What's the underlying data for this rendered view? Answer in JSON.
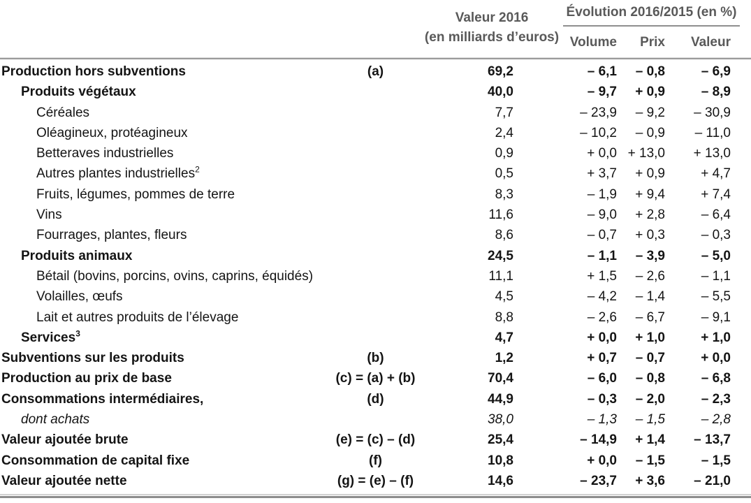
{
  "table": {
    "header": {
      "value_col_line1": "Valeur 2016",
      "value_col_line2": "(en milliards d’euros)",
      "evolution_title": "Évolution 2016/2015 (en %)",
      "sub_columns": [
        "Volume",
        "Prix",
        "Valeur"
      ]
    },
    "rows": [
      {
        "label": "Production hors subventions",
        "sup": "",
        "code": "(a)",
        "indent": 0,
        "style": "bold",
        "v2016": "69,2",
        "volume": "– 6,1",
        "prix": "– 0,8",
        "valeur": "– 6,9"
      },
      {
        "label": "Produits végétaux",
        "sup": "",
        "code": "",
        "indent": 1,
        "style": "bold",
        "v2016": "40,0",
        "volume": "– 9,7",
        "prix": "+ 0,9",
        "valeur": "– 8,9"
      },
      {
        "label": "Céréales",
        "sup": "",
        "code": "",
        "indent": 2,
        "style": "regular",
        "v2016": "7,7",
        "volume": "– 23,9",
        "prix": "– 9,2",
        "valeur": "– 30,9"
      },
      {
        "label": "Oléagineux, protéagineux",
        "sup": "",
        "code": "",
        "indent": 2,
        "style": "regular",
        "v2016": "2,4",
        "volume": "– 10,2",
        "prix": "– 0,9",
        "valeur": "– 11,0"
      },
      {
        "label": "Betteraves industrielles",
        "sup": "",
        "code": "",
        "indent": 2,
        "style": "regular",
        "v2016": "0,9",
        "volume": "+ 0,0",
        "prix": "+ 13,0",
        "valeur": "+ 13,0"
      },
      {
        "label": "Autres plantes industrielles",
        "sup": "2",
        "code": "",
        "indent": 2,
        "style": "regular",
        "v2016": "0,5",
        "volume": "+ 3,7",
        "prix": "+ 0,9",
        "valeur": "+ 4,7"
      },
      {
        "label": "Fruits, légumes, pommes de terre",
        "sup": "",
        "code": "",
        "indent": 2,
        "style": "regular",
        "v2016": "8,3",
        "volume": "– 1,9",
        "prix": "+ 9,4",
        "valeur": "+ 7,4"
      },
      {
        "label": "Vins",
        "sup": "",
        "code": "",
        "indent": 2,
        "style": "regular",
        "v2016": "11,6",
        "volume": "– 9,0",
        "prix": "+ 2,8",
        "valeur": "– 6,4"
      },
      {
        "label": "Fourrages, plantes, fleurs",
        "sup": "",
        "code": "",
        "indent": 2,
        "style": "regular",
        "v2016": "8,6",
        "volume": "– 0,7",
        "prix": "+ 0,3",
        "valeur": "– 0,3"
      },
      {
        "label": "Produits animaux",
        "sup": "",
        "code": "",
        "indent": 1,
        "style": "bold",
        "v2016": "24,5",
        "volume": "– 1,1",
        "prix": "– 3,9",
        "valeur": "– 5,0"
      },
      {
        "label": "Bétail (bovins, porcins, ovins, caprins, équidés)",
        "sup": "",
        "code": "",
        "indent": 2,
        "style": "regular",
        "v2016": "11,1",
        "volume": "+ 1,5",
        "prix": "– 2,6",
        "valeur": "– 1,1"
      },
      {
        "label": "Volailles, œufs",
        "sup": "",
        "code": "",
        "indent": 2,
        "style": "regular",
        "v2016": "4,5",
        "volume": "– 4,2",
        "prix": "– 1,4",
        "valeur": "– 5,5"
      },
      {
        "label": "Lait et autres produits de l’élevage",
        "sup": "",
        "code": "",
        "indent": 2,
        "style": "regular",
        "v2016": "8,8",
        "volume": "– 2,6",
        "prix": "– 6,7",
        "valeur": "– 9,1"
      },
      {
        "label": "Services",
        "sup": "3",
        "code": "",
        "indent": 1,
        "style": "bold",
        "v2016": "4,7",
        "volume": "+ 0,0",
        "prix": "+ 1,0",
        "valeur": "+ 1,0"
      },
      {
        "label": "Subventions sur les produits",
        "sup": "",
        "code": "(b)",
        "indent": 0,
        "style": "bold",
        "v2016": "1,2",
        "volume": "+ 0,7",
        "prix": "– 0,7",
        "valeur": "+ 0,0"
      },
      {
        "label": "Production au prix de base",
        "sup": "",
        "code": "(c) = (a) + (b)",
        "indent": 0,
        "style": "bold",
        "v2016": "70,4",
        "volume": "– 6,0",
        "prix": "– 0,8",
        "valeur": "– 6,8"
      },
      {
        "label": "Consommations intermédiaires,",
        "sup": "",
        "code": "(d)",
        "indent": 0,
        "style": "bold",
        "v2016": "44,9",
        "volume": "– 0,3",
        "prix": "– 2,0",
        "valeur": "– 2,3"
      },
      {
        "label": "dont achats",
        "sup": "",
        "code": "",
        "indent": 1,
        "style": "italic",
        "v2016": "38,0",
        "volume": "– 1,3",
        "prix": "– 1,5",
        "valeur": "– 2,8"
      },
      {
        "label": "Valeur ajoutée brute",
        "sup": "",
        "code": "(e) = (c) – (d)",
        "indent": 0,
        "style": "bold",
        "v2016": "25,4",
        "volume": "– 14,9",
        "prix": "+ 1,4",
        "valeur": "– 13,7"
      },
      {
        "label": "Consommation de capital fixe",
        "sup": "",
        "code": "(f)",
        "indent": 0,
        "style": "bold",
        "v2016": "10,8",
        "volume": "+ 0,0",
        "prix": "– 1,5",
        "valeur": "– 1,5"
      },
      {
        "label": "Valeur ajoutée nette",
        "sup": "",
        "code": "(g) = (e) – (f)",
        "indent": 0,
        "style": "bold",
        "v2016": "14,6",
        "volume": "– 23,7",
        "prix": "+ 3,6",
        "valeur": "– 21,0"
      }
    ]
  },
  "colors": {
    "header_text": "#595959",
    "body_text": "#141414",
    "rule_medium": "#9a9a9a",
    "rule_light": "#d2d2d2",
    "rule_dark": "#8d8d8d"
  }
}
